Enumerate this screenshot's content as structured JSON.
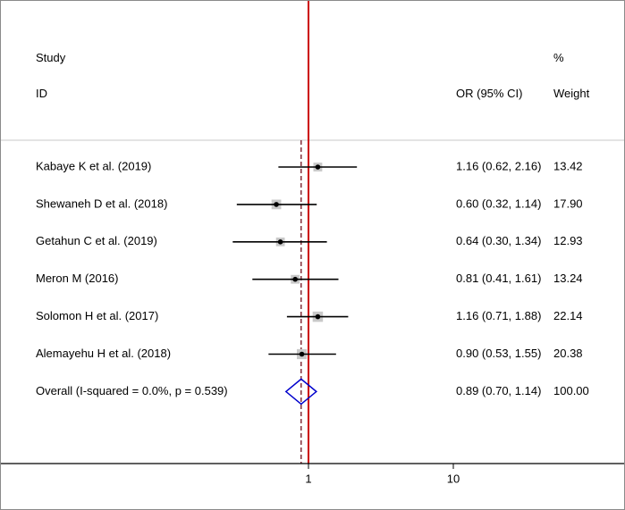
{
  "chart_data": {
    "type": "forest",
    "headers": {
      "study_top": "Study",
      "study_bottom": "ID",
      "ci": "OR (95% CI)",
      "weight_top": "%",
      "weight_bottom": "Weight"
    },
    "x_scale": "log",
    "x_ticks": [
      {
        "value": 1,
        "label": "1"
      },
      {
        "value": 10,
        "label": "10"
      }
    ],
    "null_line": 1,
    "null_line_color": "#cc0000",
    "pooled_line_color": "#7a1f2b",
    "summary_color": "#0000cc",
    "studies": [
      {
        "label": "Kabaye K et al. (2019)",
        "or": 1.16,
        "lo": 0.62,
        "hi": 2.16,
        "ci_text": "1.16 (0.62, 2.16)",
        "weight": "13.42"
      },
      {
        "label": "Shewaneh D et al. (2018)",
        "or": 0.6,
        "lo": 0.32,
        "hi": 1.14,
        "ci_text": "0.60 (0.32, 1.14)",
        "weight": "17.90"
      },
      {
        "label": "Getahun C et al. (2019)",
        "or": 0.64,
        "lo": 0.3,
        "hi": 1.34,
        "ci_text": "0.64 (0.30, 1.34)",
        "weight": "12.93"
      },
      {
        "label": "Meron M (2016)",
        "or": 0.81,
        "lo": 0.41,
        "hi": 1.61,
        "ci_text": "0.81 (0.41, 1.61)",
        "weight": "13.24"
      },
      {
        "label": "Solomon H et al. (2017)",
        "or": 1.16,
        "lo": 0.71,
        "hi": 1.88,
        "ci_text": "1.16 (0.71, 1.88)",
        "weight": "22.14"
      },
      {
        "label": "Alemayehu H et al. (2018)",
        "or": 0.9,
        "lo": 0.53,
        "hi": 1.55,
        "ci_text": "0.90 (0.53, 1.55)",
        "weight": "20.38"
      }
    ],
    "overall": {
      "label": "Overall  (I-squared = 0.0%, p = 0.539)",
      "or": 0.89,
      "lo": 0.7,
      "hi": 1.14,
      "ci_text": "0.89 (0.70, 1.14)",
      "weight": "100.00"
    }
  }
}
